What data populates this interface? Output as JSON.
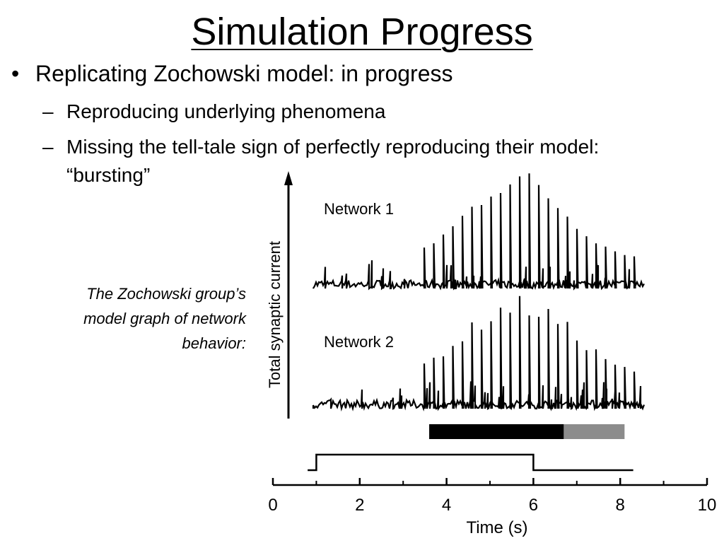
{
  "header": {
    "title": "Simulation Progress"
  },
  "bullets": [
    {
      "text": "Replicating Zochowski model: in progress",
      "sub": [
        "Reproducing underlying phenomena",
        "Missing the tell-tale sign of perfectly reproducing their model:",
        "“bursting”"
      ]
    }
  ],
  "caption": [
    "The Zochowski group’s",
    "model graph of network",
    "behavior:"
  ],
  "figure": {
    "y_label": "Total synaptic current",
    "x_label": "Time (s)",
    "xlim": [
      0,
      10
    ],
    "xticks": [
      0,
      2,
      4,
      6,
      8,
      10
    ],
    "minor_xticks": [
      1,
      3,
      5,
      7,
      9
    ],
    "panels": [
      {
        "name": "Network 1"
      },
      {
        "name": "Network 2"
      }
    ],
    "bars": [
      {
        "start": 3.6,
        "end": 6.7,
        "color": "#000000"
      },
      {
        "start": 6.7,
        "end": 8.1,
        "color": "#8c8c8c"
      }
    ],
    "stimulus": {
      "start": 0.8,
      "onset": 1,
      "offset": 6,
      "end": 8.3
    }
  }
}
